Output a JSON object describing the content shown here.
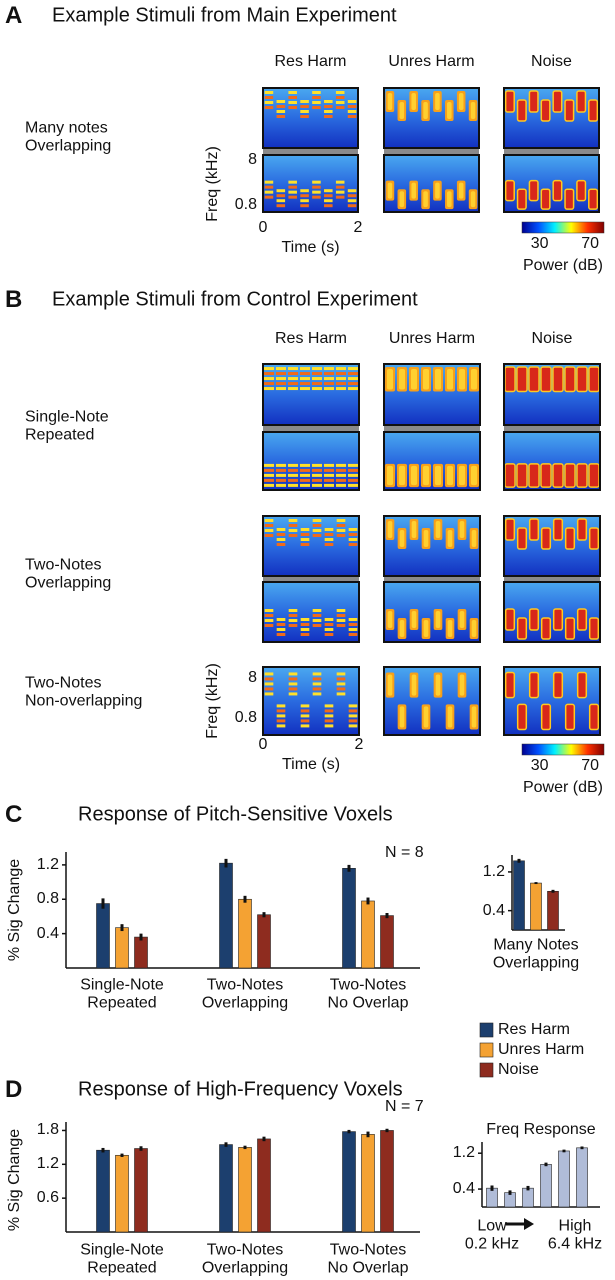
{
  "panel_a": {
    "letter": "A",
    "title": "Example Stimuli from Main Experiment",
    "columns": [
      "Res Harm",
      "Unres Harm",
      "Noise"
    ],
    "rows": [
      "Many notes\nOverlapping"
    ],
    "freq_label": "Freq (kHz)",
    "freq_scale": "log",
    "freq_lim": [
      0.56,
      10.3
    ],
    "freq_ticks": [
      8,
      0.8
    ],
    "time_label": "Time (s)",
    "time_lim": [
      0,
      2
    ],
    "time_ticks": [
      0,
      2
    ],
    "colorbar_label": "Power (dB)",
    "colorbar_lim": [
      16,
      81
    ],
    "colorbar_ticks": [
      30,
      70
    ]
  },
  "panel_b": {
    "letter": "B",
    "title": "Example Stimuli from Control Experiment",
    "columns": [
      "Res Harm",
      "Unres Harm",
      "Noise"
    ],
    "rows": [
      "Single-Note\nRepeated",
      "Two-Notes\nOverlapping",
      "Two-Notes\nNon-overlapping"
    ],
    "freq_label": "Freq (kHz)",
    "freq_scale": "log",
    "freq_lim": [
      0.3,
      15
    ],
    "freq_ticks": [
      8,
      0.8
    ],
    "time_label": "Time (s)",
    "time_lim": [
      0,
      2
    ],
    "time_ticks": [
      0,
      2
    ],
    "colorbar_label": "Power (dB)",
    "colorbar_lim": [
      16,
      81
    ],
    "colorbar_ticks": [
      30,
      70
    ]
  },
  "chart_data": [
    {
      "panel": "C",
      "type": "bar",
      "title": "Response of Pitch-Sensitive Voxels",
      "y_label": "% Sig Change",
      "annotation": "N = 8",
      "categories": [
        "Single-Note\nRepeated",
        "Two-Notes\nOverlapping",
        "Two-Notes\nNo Overlap"
      ],
      "series": [
        {
          "color": "#1c3f6e",
          "values": [
            0.75,
            1.22,
            1.16
          ],
          "errors": [
            0.06,
            0.05,
            0.04
          ]
        },
        {
          "color": "#f4a233",
          "values": [
            0.47,
            0.8,
            0.78
          ],
          "errors": [
            0.04,
            0.04,
            0.04
          ]
        },
        {
          "color": "#8e2c1f",
          "values": [
            0.36,
            0.62,
            0.61
          ],
          "errors": [
            0.04,
            0.03,
            0.03
          ]
        }
      ],
      "ylim": [
        0,
        1.35
      ],
      "yticks": [
        0.4,
        0.8,
        1.2
      ]
    },
    {
      "type": "bar",
      "categories": [
        "Many Notes\nOverlapping"
      ],
      "series": [
        {
          "color": "#1c3f6e",
          "values": [
            1.43
          ],
          "errors": [
            0.04
          ]
        },
        {
          "color": "#f4a233",
          "values": [
            0.97
          ],
          "errors": [
            0.02
          ]
        },
        {
          "color": "#8e2c1f",
          "values": [
            0.8
          ],
          "errors": [
            0.03
          ]
        }
      ],
      "ylim": [
        0,
        1.55
      ],
      "yticks": [
        0.4,
        1.2
      ]
    },
    {
      "panel": "D",
      "type": "bar",
      "title": "Response of High-Frequency Voxels",
      "y_label": "% Sig Change",
      "annotation": "N = 7",
      "legend": "top-right",
      "categories": [
        "Single-Note\nRepeated",
        "Two-Notes\nOverlapping",
        "Two-Notes\nNo Overlap"
      ],
      "series": [
        {
          "name": "Res Harm",
          "color": "#1c3f6e",
          "values": [
            1.45,
            1.55,
            1.78
          ],
          "errors": [
            0.04,
            0.04,
            0.03
          ]
        },
        {
          "name": "Unres Harm",
          "color": "#f4a233",
          "values": [
            1.36,
            1.5,
            1.73
          ],
          "errors": [
            0.03,
            0.03,
            0.05
          ]
        },
        {
          "name": "Noise",
          "color": "#8e2c1f",
          "values": [
            1.48,
            1.65,
            1.8
          ],
          "errors": [
            0.04,
            0.04,
            0.03
          ]
        }
      ],
      "ylim": [
        0,
        1.95
      ],
      "yticks": [
        0.6,
        1.2,
        1.8
      ]
    },
    {
      "type": "bar",
      "title": "Freq Response",
      "categories": [
        null,
        null,
        null,
        null,
        null,
        null
      ],
      "values": [
        0.42,
        0.32,
        0.42,
        0.95,
        1.25,
        1.32
      ],
      "errors": [
        0.06,
        0.05,
        0.05,
        0.04,
        0.03,
        0.03
      ],
      "color": "#b0bcd8",
      "ylim": [
        0,
        1.45
      ],
      "yticks": [
        0.4,
        1.2
      ],
      "x_start_label": "Low\n0.2 kHz",
      "x_end_label": "High\n6.4 kHz"
    }
  ]
}
